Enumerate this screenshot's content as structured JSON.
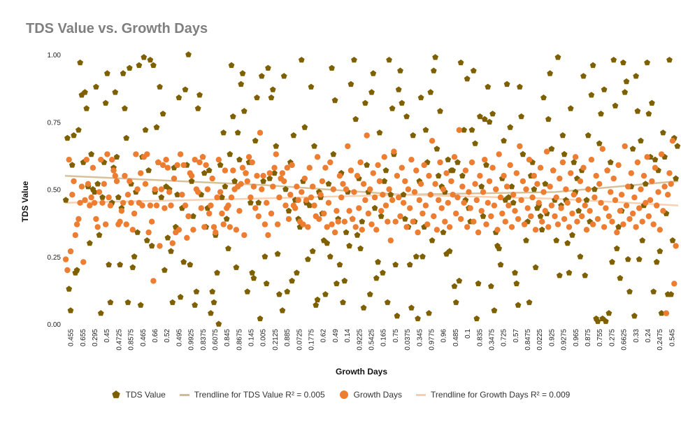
{
  "chart_data": {
    "type": "scatter",
    "title": "TDS Value vs. Growth Days",
    "xlabel": "Growth Days",
    "ylabel": "TDS Value",
    "ylim": [
      0,
      1
    ],
    "y_ticks": [
      "0.00",
      "0.25",
      "0.50",
      "0.75",
      "1.00"
    ],
    "x_tick_labels": [
      "0.455",
      "0.655",
      "0.295",
      "0.45",
      "0.4725",
      "0.8575",
      "0.465",
      "0.66",
      "0.52",
      "0.495",
      "0.9925",
      "0.8375",
      "0.6075",
      "0.845",
      "0.8675",
      "0.145",
      "0.005",
      "0.2125",
      "0.885",
      "0.0725",
      "0.1775",
      "0.62",
      "0.49",
      "0.14",
      "0.9225",
      "0.5425",
      "0.165",
      "0.75",
      "0.0375",
      "0.345",
      "0.9775",
      "0.96",
      "0.485",
      "0.1",
      "0.835",
      "0.3475",
      "0.725",
      "0.57",
      "0.8475",
      "0.0225",
      "0.925",
      "0.9275",
      "0.965",
      "0.875",
      "0.755",
      "0.275",
      "0.6625",
      "0.33",
      "0.24",
      "0.2475",
      "0.545"
    ],
    "grid": false,
    "legend_position": "bottom",
    "n_points": 385,
    "series": [
      {
        "name": "TDS Value",
        "marker": "pentagon",
        "color": "#7f6000",
        "values": [
          0.46,
          0.69,
          0.13,
          0.05,
          0.59,
          0.7,
          0.19,
          0.2,
          0.72,
          0.97,
          0.85,
          0.6,
          0.86,
          0.8,
          0.51,
          0.3,
          0.63,
          0.5,
          0.49,
          0.88,
          0.52,
          0.33,
          0.04,
          0.47,
          0.6,
          0.82,
          0.93,
          0.22,
          0.08,
          0.45,
          0.58,
          0.86,
          0.62,
          0.47,
          0.22,
          0.43,
          0.93,
          0.8,
          0.69,
          0.08,
          0.95,
          0.52,
          0.21,
          0.25,
          0.49,
          0.34,
          0.96,
          0.07,
          0.62,
          0.99,
          0.72,
          0.31,
          0.57,
          0.98,
          0.29,
          0.96,
          0.49,
          0.73,
          0.6,
          0.88,
          0.47,
          0.78,
          0.2,
          0.51,
          0.32,
          0.5,
          0.27,
          0.08,
          0.58,
          0.36,
          0.48,
          0.84,
          0.1,
          0.43,
          0.23,
          0.87,
          0.59,
          1.0,
          0.22,
          0.53,
          0.4,
          0.07,
          0.12,
          0.8,
          0.85,
          0.48,
          0.62,
          0.56,
          0.36,
          0.43,
          0.57,
          0.04,
          0.12,
          0.08,
          0.33,
          0.19,
          0.0,
          0.59,
          0.47,
          0.71,
          0.51,
          0.39,
          0.28,
          0.63,
          0.96,
          0.77,
          0.53,
          0.21,
          0.71,
          0.61,
          0.89,
          0.93,
          0.79,
          0.56,
          0.12,
          0.6,
          0.45,
          0.19,
          0.17,
          0.68,
          0.84,
          0.45,
          0.02,
          0.92,
          0.53,
          0.25,
          0.15,
          0.95,
          0.54,
          0.84,
          0.87,
          0.56,
          0.66,
          0.26,
          0.11,
          0.54,
          0.05,
          0.92,
          0.5,
          0.12,
          0.42,
          0.6,
          0.16,
          0.7,
          0.46,
          0.19,
          0.39,
          0.36,
          0.98,
          0.53,
          0.73,
          0.45,
          0.24,
          0.44,
          0.88,
          0.27,
          0.66,
          0.07,
          0.09,
          0.49,
          0.47,
          0.41,
          0.31,
          0.11,
          0.3,
          0.52,
          0.25,
          0.95,
          0.63,
          0.83,
          0.15,
          0.39,
          0.22,
          0.56,
          0.08,
          0.16,
          0.34,
          0.49,
          0.29,
          0.89,
          0.39,
          0.98,
          0.76,
          0.33,
          0.54,
          0.28,
          0.38,
          0.06,
          0.82,
          0.59,
          0.49,
          0.11,
          0.86,
          0.93,
          0.43,
          0.17,
          0.23,
          0.71,
          0.4,
          0.19,
          0.53,
          0.57,
          0.08,
          0.98,
          0.48,
          0.8,
          0.63,
          0.22,
          0.03,
          0.87,
          0.94,
          0.82,
          0.48,
          0.39,
          0.77,
          0.36,
          0.22,
          0.06,
          0.7,
          0.38,
          0.25,
          0.02,
          0.53,
          0.84,
          0.25,
          0.36,
          0.72,
          0.6,
          0.04,
          0.86,
          0.31,
          0.94,
          0.99,
          0.65,
          0.55,
          0.79,
          0.51,
          0.34,
          0.49,
          0.26,
          0.61,
          0.27,
          0.57,
          0.57,
          0.14,
          0.08,
          0.6,
          0.16,
          0.97,
          0.55,
          0.72,
          0.46,
          0.91,
          0.43,
          0.38,
          0.72,
          0.94,
          0.67,
          0.02,
          0.15,
          0.77,
          0.51,
          0.4,
          0.76,
          0.59,
          0.88,
          0.75,
          0.14,
          0.78,
          0.05,
          0.34,
          0.29,
          0.28,
          0.22,
          0.54,
          0.68,
          0.46,
          0.89,
          0.47,
          0.73,
          0.51,
          0.45,
          0.19,
          0.15,
          0.07,
          0.88,
          0.77,
          0.63,
          0.37,
          0.31,
          0.38,
          0.08,
          0.55,
          0.6,
          0.5,
          0.21,
          0.43,
          0.44,
          0.4,
          0.35,
          0.84,
          0.52,
          0.41,
          0.76,
          0.93,
          0.65,
          0.57,
          0.46,
          0.31,
          0.99,
          0.18,
          0.44,
          0.7,
          0.63,
          0.46,
          0.3,
          0.19,
          0.8,
          0.33,
          0.6,
          0.49,
          0.54,
          0.42,
          0.25,
          0.57,
          0.92,
          0.18,
          0.46,
          0.7,
          0.38,
          0.85,
          0.96,
          0.5,
          0.02,
          0.01,
          0.67,
          0.78,
          0.02,
          0.87,
          0.01,
          0.57,
          0.04,
          0.6,
          0.23,
          0.98,
          0.81,
          0.28,
          0.36,
          0.17,
          0.42,
          0.97,
          0.86,
          0.9,
          0.24,
          0.12,
          0.51,
          0.65,
          0.03,
          0.92,
          0.79,
          0.24,
          0.68,
          0.31,
          0.44,
          0.52,
          0.97,
          0.78,
          0.62,
          0.82,
          0.12,
          0.61,
          0.23,
          0.57,
          0.27,
          0.04,
          0.71,
          0.62,
          0.41,
          0.11,
          0.98,
          0.11,
          0.31,
          0.69,
          0.54,
          0.66
        ]
      },
      {
        "name": "Growth Days",
        "marker": "circle",
        "color": "#ed7d31",
        "values": [
          0.24,
          0.2,
          0.61,
          0.27,
          0.48,
          0.53,
          0.33,
          0.37,
          0.39,
          0.45,
          0.51,
          0.23,
          0.46,
          0.61,
          0.52,
          0.44,
          0.47,
          0.58,
          0.45,
          0.39,
          0.36,
          0.49,
          0.61,
          0.45,
          0.52,
          0.37,
          0.63,
          0.47,
          0.44,
          0.61,
          0.57,
          0.55,
          0.53,
          0.37,
          0.38,
          0.42,
          0.45,
          0.55,
          0.37,
          0.48,
          0.53,
          0.45,
          0.35,
          0.41,
          0.63,
          0.5,
          0.45,
          0.56,
          0.44,
          0.62,
          0.52,
          0.63,
          0.34,
          0.44,
          0.38,
          0.16,
          0.5,
          0.44,
          0.6,
          0.29,
          0.5,
          0.59,
          0.43,
          0.61,
          0.58,
          0.49,
          0.44,
          0.3,
          0.54,
          0.34,
          0.59,
          0.35,
          0.63,
          0.48,
          0.59,
          0.44,
          0.32,
          0.4,
          0.56,
          0.55,
          0.35,
          0.61,
          0.5,
          0.49,
          0.6,
          0.43,
          0.62,
          0.36,
          0.59,
          0.5,
          0.41,
          0.44,
          0.54,
          0.36,
          0.34,
          0.47,
          0.61,
          0.49,
          0.41,
          0.37,
          0.57,
          0.43,
          0.44,
          0.36,
          0.47,
          0.57,
          0.5,
          0.35,
          0.51,
          0.42,
          0.52,
          0.58,
          0.33,
          0.56,
          0.53,
          0.62,
          0.47,
          0.6,
          0.51,
          0.43,
          0.55,
          0.4,
          0.71,
          0.5,
          0.55,
          0.37,
          0.45,
          0.33,
          0.56,
          0.41,
          0.51,
          0.58,
          0.63,
          0.37,
          0.47,
          0.54,
          0.56,
          0.53,
          0.44,
          0.58,
          0.39,
          0.48,
          0.59,
          0.44,
          0.43,
          0.51,
          0.46,
          0.38,
          0.49,
          0.37,
          0.54,
          0.46,
          0.36,
          0.58,
          0.47,
          0.51,
          0.44,
          0.4,
          0.62,
          0.39,
          0.48,
          0.53,
          0.41,
          0.58,
          0.36,
          0.45,
          0.6,
          0.37,
          0.5,
          0.34,
          0.42,
          0.38,
          0.55,
          0.47,
          0.52,
          0.38,
          0.5,
          0.66,
          0.42,
          0.57,
          0.39,
          0.49,
          0.36,
          0.55,
          0.43,
          0.6,
          0.35,
          0.52,
          0.46,
          0.7,
          0.41,
          0.5,
          0.37,
          0.56,
          0.47,
          0.35,
          0.59,
          0.53,
          0.42,
          0.48,
          0.62,
          0.44,
          0.38,
          0.5,
          0.31,
          0.46,
          0.64,
          0.38,
          0.55,
          0.47,
          0.4,
          0.58,
          0.45,
          0.53,
          0.36,
          0.5,
          0.43,
          0.61,
          0.38,
          0.49,
          0.57,
          0.34,
          0.46,
          0.52,
          0.41,
          0.59,
          0.44,
          0.37,
          0.55,
          0.48,
          0.68,
          0.4,
          0.52,
          0.35,
          0.46,
          0.6,
          0.43,
          0.5,
          0.38,
          0.56,
          0.45,
          0.36,
          0.53,
          0.48,
          0.62,
          0.41,
          0.47,
          0.72,
          0.39,
          0.51,
          0.45,
          0.57,
          0.36,
          0.49,
          0.43,
          0.6,
          0.38,
          0.52,
          0.46,
          0.34,
          0.55,
          0.42,
          0.49,
          0.61,
          0.37,
          0.45,
          0.53,
          0.4,
          0.58,
          0.44,
          0.5,
          0.35,
          0.63,
          0.47,
          0.41,
          0.55,
          0.38,
          0.51,
          0.44,
          0.59,
          0.36,
          0.48,
          0.42,
          0.56,
          0.39,
          0.66,
          0.46,
          0.53,
          0.37,
          0.5,
          0.43,
          0.61,
          0.4,
          0.47,
          0.55,
          0.35,
          0.52,
          0.45,
          0.58,
          0.38,
          0.49,
          0.42,
          0.64,
          0.36,
          0.51,
          0.44,
          0.57,
          0.4,
          0.47,
          0.37,
          0.54,
          0.43,
          0.6,
          0.39,
          0.5,
          0.45,
          0.36,
          0.56,
          0.41,
          0.48,
          0.62,
          0.38,
          0.46,
          0.53,
          0.4,
          0.58,
          0.44,
          0.35,
          0.5,
          0.42,
          0.61,
          0.37,
          0.47,
          0.55,
          0.39,
          0.52,
          0.45,
          0.65,
          0.36,
          0.43,
          0.57,
          0.4,
          0.49,
          0.38,
          0.54,
          0.46,
          0.34,
          0.59,
          0.42,
          0.48,
          0.37,
          0.66,
          0.44,
          0.51,
          0.39,
          0.56,
          0.41,
          0.47,
          0.36,
          0.6,
          0.43,
          0.5,
          0.38,
          0.55,
          0.45,
          0.62,
          0.4,
          0.46,
          0.53,
          0.37,
          0.58,
          0.44,
          0.49,
          0.35,
          0.63,
          0.42,
          0.51,
          0.04,
          0.48,
          0.56,
          0.52,
          0.68,
          0.15,
          0.29
        ]
      }
    ],
    "trendlines": [
      {
        "name": "Trendline for  TDS Value R² = 0.005",
        "color": "#d1bb8f",
        "from": 0.55,
        "to": 0.53,
        "min": 0.48,
        "min_at": 0.55
      },
      {
        "name": "Trendline for Growth Days R² = 0.009",
        "color": "#f8cfae",
        "from": 0.45,
        "to": 0.44,
        "mid": 0.48,
        "mid_at": 0.55
      }
    ]
  }
}
